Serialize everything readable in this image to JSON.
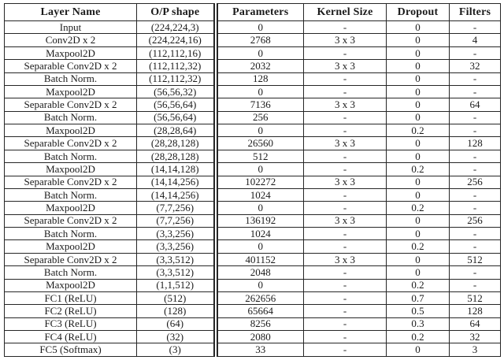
{
  "page": {
    "background": "#ffffff",
    "text_color": "#1b1b1b",
    "rule_color": "#262626"
  },
  "chart_data": {
    "type": "table",
    "columns": [
      "Layer Name",
      "O/P shape",
      "Parameters",
      "Kernel Size",
      "Dropout",
      "Filters"
    ],
    "rows": [
      [
        "Input",
        "(224,224,3)",
        "0",
        "-",
        "0",
        "-"
      ],
      [
        "Conv2D x 2",
        "(224,224,16)",
        "2768",
        "3 x 3",
        "0",
        "4"
      ],
      [
        "Maxpool2D",
        "(112,112,16)",
        "0",
        "-",
        "0",
        "-"
      ],
      [
        "Separable Conv2D x 2",
        "(112,112,32)",
        "2032",
        "3 x 3",
        "0",
        "32"
      ],
      [
        "Batch Norm.",
        "(112,112,32)",
        "128",
        "-",
        "0",
        "-"
      ],
      [
        "Maxpool2D",
        "(56,56,32)",
        "0",
        "-",
        "0",
        "-"
      ],
      [
        "Separable Conv2D x 2",
        "(56,56,64)",
        "7136",
        "3 x 3",
        "0",
        "64"
      ],
      [
        "Batch Norm.",
        "(56,56,64)",
        "256",
        "-",
        "0",
        "-"
      ],
      [
        "Maxpool2D",
        "(28,28,64)",
        "0",
        "-",
        "0.2",
        "-"
      ],
      [
        "Separable Conv2D x 2",
        "(28,28,128)",
        "26560",
        "3 x 3",
        "0",
        "128"
      ],
      [
        "Batch Norm.",
        "(28,28,128)",
        "512",
        "-",
        "0",
        "-"
      ],
      [
        "Maxpool2D",
        "(14,14,128)",
        "0",
        "-",
        "0.2",
        "-"
      ],
      [
        "Separable Conv2D x 2",
        "(14,14,256)",
        "102272",
        "3 x 3",
        "0",
        "256"
      ],
      [
        "Batch Norm.",
        "(14,14,256)",
        "1024",
        "-",
        "0",
        "-"
      ],
      [
        "Maxpool2D",
        "(7,7,256)",
        "0",
        "-",
        "0.2",
        "-"
      ],
      [
        "Separable Conv2D x 2",
        "(7,7,256)",
        "136192",
        "3 x 3",
        "0",
        "256"
      ],
      [
        "Batch Norm.",
        "(3,3,256)",
        "1024",
        "-",
        "0",
        "-"
      ],
      [
        "Maxpool2D",
        "(3,3,256)",
        "0",
        "-",
        "0.2",
        "-"
      ],
      [
        "Separable Conv2D x 2",
        "(3,3,512)",
        "401152",
        "3 x 3",
        "0",
        "512"
      ],
      [
        "Batch Norm.",
        "(3,3,512)",
        "2048",
        "-",
        "0",
        "-"
      ],
      [
        "Maxpool2D",
        "(1,1,512)",
        "0",
        "-",
        "0.2",
        "-"
      ],
      [
        "FC1 (ReLU)",
        "(512)",
        "262656",
        "-",
        "0.7",
        "512"
      ],
      [
        "FC2 (ReLU)",
        "(128)",
        "65664",
        "-",
        "0.5",
        "128"
      ],
      [
        "FC3 (ReLU)",
        "(64)",
        "8256",
        "-",
        "0.3",
        "64"
      ],
      [
        "FC4 (ReLU)",
        "(32)",
        "2080",
        "-",
        "0.2",
        "32"
      ],
      [
        "FC5 (Softmax)",
        "(3)",
        "33",
        "-",
        "0",
        "3"
      ]
    ]
  }
}
